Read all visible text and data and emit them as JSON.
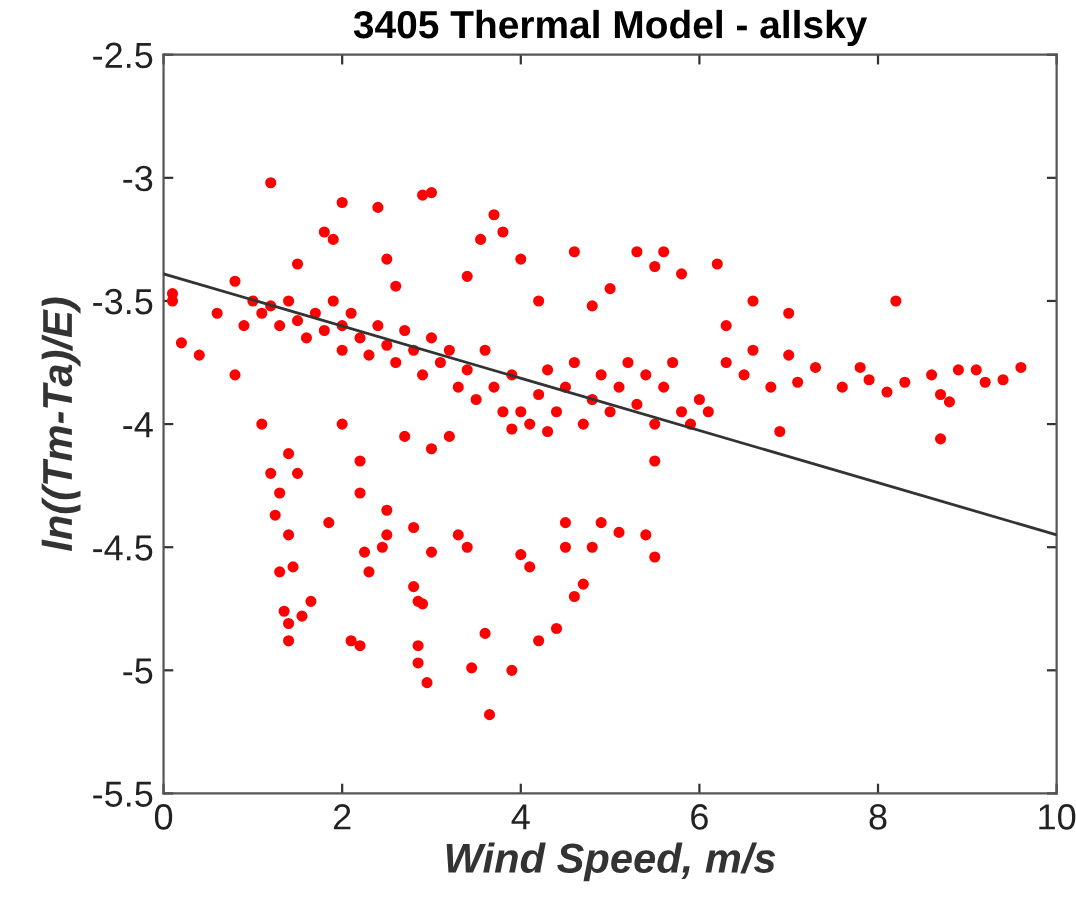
{
  "chart_data": {
    "type": "scatter",
    "title": "3405 Thermal Model - allsky",
    "xlabel": "Wind Speed, m/s",
    "ylabel": "ln((Tm-Ta)/E)",
    "xlim": [
      0,
      10
    ],
    "ylim": [
      -5.5,
      -2.5
    ],
    "xticks": [
      0,
      2,
      4,
      6,
      8,
      10
    ],
    "yticks": [
      -5.5,
      -5,
      -4.5,
      -4,
      -3.5,
      -3,
      -2.5
    ],
    "grid": false,
    "legend": false,
    "series": [
      {
        "color": "#ff0000",
        "marker": "circle",
        "x": [
          1.2,
          1.5,
          2.0,
          2.4,
          2.9,
          3.0,
          3.55,
          3.7,
          3.8,
          4.0,
          1.8,
          1.9,
          2.5,
          2.6,
          3.4,
          4.2,
          4.6,
          5.3,
          5.6,
          5.5,
          5.8,
          6.2,
          8.2,
          6.6,
          7.0,
          6.3,
          5.0,
          4.8,
          0.1,
          0.1,
          0.2,
          0.4,
          0.8,
          0.6,
          0.8,
          1.0,
          0.9,
          1.1,
          1.2,
          1.3,
          1.4,
          1.5,
          1.6,
          1.7,
          1.8,
          1.9,
          2.0,
          2.0,
          2.1,
          2.2,
          2.3,
          2.4,
          2.5,
          2.6,
          2.7,
          2.8,
          2.9,
          3.0,
          3.1,
          3.2,
          3.3,
          3.4,
          3.5,
          3.6,
          3.7,
          3.8,
          3.9,
          4.0,
          4.1,
          4.2,
          4.3,
          4.4,
          4.5,
          4.6,
          4.7,
          4.8,
          4.9,
          5.0,
          5.1,
          5.2,
          5.3,
          5.4,
          5.5,
          5.6,
          5.7,
          5.8,
          5.9,
          6.0,
          6.1,
          6.3,
          6.5,
          6.6,
          6.8,
          6.9,
          7.0,
          7.1,
          7.3,
          7.6,
          7.8,
          7.9,
          8.1,
          8.3,
          8.6,
          8.7,
          8.7,
          8.8,
          8.9,
          9.1,
          9.2,
          9.4,
          9.6,
          5.5,
          4.3,
          3.9,
          1.1,
          1.2,
          1.3,
          1.25,
          1.4,
          1.4,
          1.5,
          1.3,
          1.45,
          1.35,
          1.4,
          1.55,
          1.65,
          1.4,
          1.85,
          2.0,
          2.2,
          2.2,
          2.25,
          2.3,
          2.45,
          2.5,
          2.5,
          2.8,
          2.1,
          2.2,
          2.8,
          2.85,
          2.9,
          2.85,
          2.85,
          2.95,
          3.0,
          3.3,
          3.4,
          3.6,
          3.45,
          3.65,
          3.9,
          4.0,
          4.1,
          4.2,
          4.4,
          4.5,
          4.5,
          4.6,
          4.8,
          4.9,
          5.1,
          5.4,
          5.5,
          4.7,
          3.0,
          3.2,
          2.7
        ],
        "values": [
          -3.02,
          -3.35,
          -3.1,
          -3.12,
          -3.07,
          -3.06,
          -3.25,
          -3.15,
          -3.22,
          -3.33,
          -3.22,
          -3.25,
          -3.33,
          -3.44,
          -3.4,
          -3.5,
          -3.3,
          -3.3,
          -3.3,
          -3.36,
          -3.39,
          -3.35,
          -3.5,
          -3.5,
          -3.55,
          -3.6,
          -3.45,
          -3.52,
          -3.5,
          -3.47,
          -3.67,
          -3.72,
          -3.8,
          -3.55,
          -3.42,
          -3.5,
          -3.6,
          -3.55,
          -3.52,
          -3.6,
          -3.5,
          -3.58,
          -3.65,
          -3.55,
          -3.62,
          -3.5,
          -3.7,
          -3.6,
          -3.55,
          -3.65,
          -3.72,
          -3.6,
          -3.68,
          -3.75,
          -3.62,
          -3.7,
          -3.8,
          -3.65,
          -3.75,
          -3.7,
          -3.85,
          -3.78,
          -3.9,
          -3.7,
          -3.85,
          -3.95,
          -3.8,
          -3.95,
          -4.0,
          -3.88,
          -3.78,
          -3.95,
          -3.85,
          -3.75,
          -4.0,
          -3.9,
          -3.8,
          -3.95,
          -3.85,
          -3.75,
          -3.92,
          -3.8,
          -4.0,
          -3.85,
          -3.75,
          -3.95,
          -4.0,
          -3.9,
          -3.95,
          -3.75,
          -3.8,
          -3.7,
          -3.85,
          -4.03,
          -3.72,
          -3.83,
          -3.77,
          -3.85,
          -3.77,
          -3.82,
          -3.87,
          -3.83,
          -3.8,
          -3.88,
          -4.06,
          -3.91,
          -3.78,
          -3.78,
          -3.83,
          -3.82,
          -3.77,
          -4.15,
          -4.03,
          -4.02,
          -4.0,
          -4.2,
          -4.28,
          -4.37,
          -4.12,
          -4.45,
          -4.2,
          -4.6,
          -4.58,
          -4.76,
          -4.81,
          -4.78,
          -4.72,
          -4.88,
          -4.4,
          -4.0,
          -4.15,
          -4.28,
          -4.52,
          -4.6,
          -4.5,
          -4.35,
          -4.45,
          -4.42,
          -4.88,
          -4.9,
          -4.66,
          -4.72,
          -4.73,
          -4.9,
          -4.97,
          -5.05,
          -4.52,
          -4.45,
          -4.5,
          -4.85,
          -4.99,
          -5.18,
          -5.0,
          -4.53,
          -4.58,
          -4.88,
          -4.83,
          -4.4,
          -4.5,
          -4.7,
          -4.5,
          -4.4,
          -4.44,
          -4.45,
          -4.54,
          -4.65,
          -4.1,
          -4.05,
          -4.05
        ]
      },
      {
        "type": "line",
        "color": "#333333",
        "line_style": "solid",
        "marker": "none",
        "x": [
          0,
          10
        ],
        "values": [
          -3.39,
          -4.45
        ]
      }
    ]
  }
}
